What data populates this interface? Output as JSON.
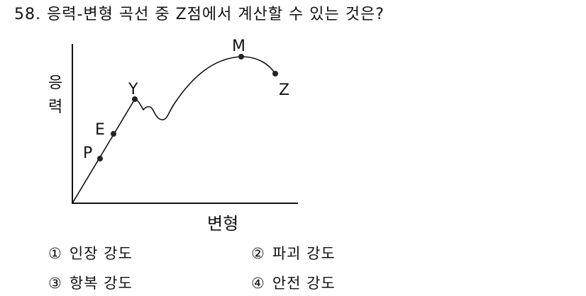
{
  "question": {
    "text": "58. 응력-변형 곡선 중 Z점에서 계산할 수 있는 것은?"
  },
  "diagram": {
    "y_axis_label_line1": "응",
    "y_axis_label_line2": "력",
    "x_axis_label": "변형",
    "points": {
      "P": "P",
      "E": "E",
      "Y": "Y",
      "M": "M",
      "Z": "Z"
    }
  },
  "choices": [
    {
      "number": "①",
      "label": "인장 강도"
    },
    {
      "number": "②",
      "label": "파괴 강도"
    },
    {
      "number": "③",
      "label": "항복 강도"
    },
    {
      "number": "④",
      "label": "안전 강도"
    }
  ]
}
